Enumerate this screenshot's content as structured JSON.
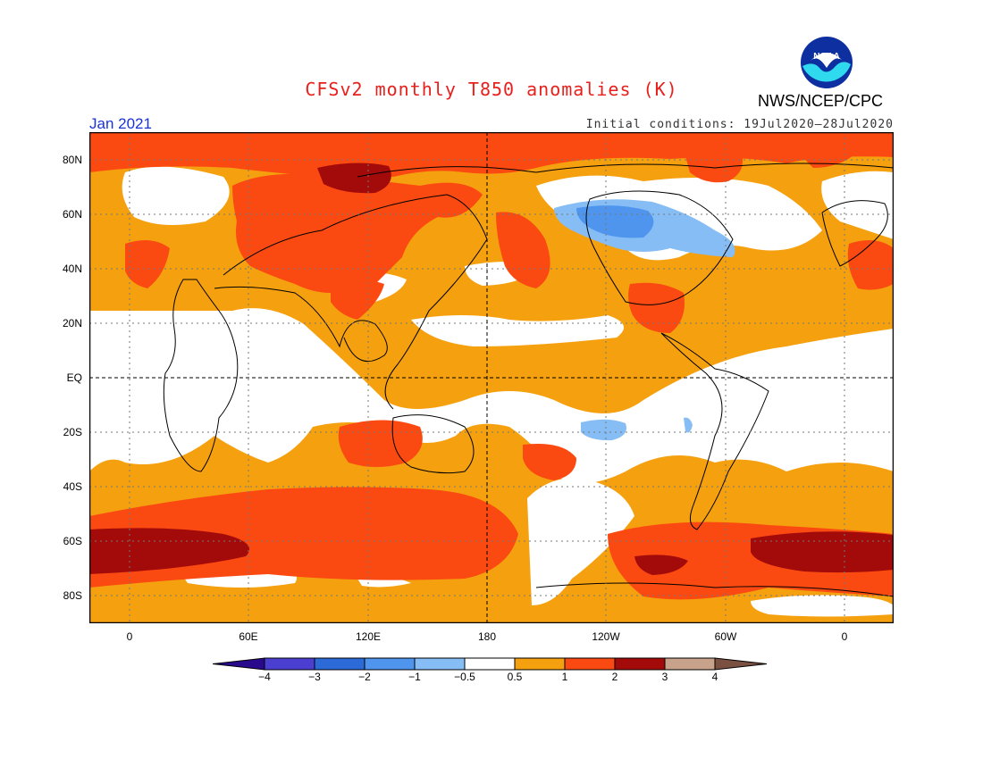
{
  "title": "CFSv2 monthly T850 anomalies (K)",
  "agency": "NWS/NCEP/CPC",
  "logo_text": "NOAA",
  "period": "Jan 2021",
  "initial_conditions": "Initial conditions: 19Jul2020–28Jul2020",
  "lat_labels": [
    "80N",
    "60N",
    "40N",
    "20N",
    "EQ",
    "20S",
    "40S",
    "60S",
    "80S"
  ],
  "lon_labels": [
    "0",
    "60E",
    "120E",
    "180",
    "120W",
    "60W",
    "0"
  ],
  "colorbar": {
    "labels": [
      "−4",
      "−3",
      "−2",
      "−1",
      "−0.5",
      "0.5",
      "1",
      "2",
      "3",
      "4"
    ],
    "colors": [
      "#2a0a8c",
      "#4a3fd0",
      "#2c6ad8",
      "#4f95ee",
      "#86bdf5",
      "#ffffff",
      "#f5a00f",
      "#fa4a12",
      "#a30b0b",
      "#c9a28c",
      "#7a5040"
    ]
  },
  "colors": {
    "title": "#e8201c",
    "period": "#1a33d6",
    "anom_05_1": "#f5a00f",
    "anom_1_2": "#fa4a12",
    "anom_2_3": "#a30b0b",
    "anom_neg_05": "#86bdf5",
    "anom_neg_1": "#4f95ee"
  }
}
